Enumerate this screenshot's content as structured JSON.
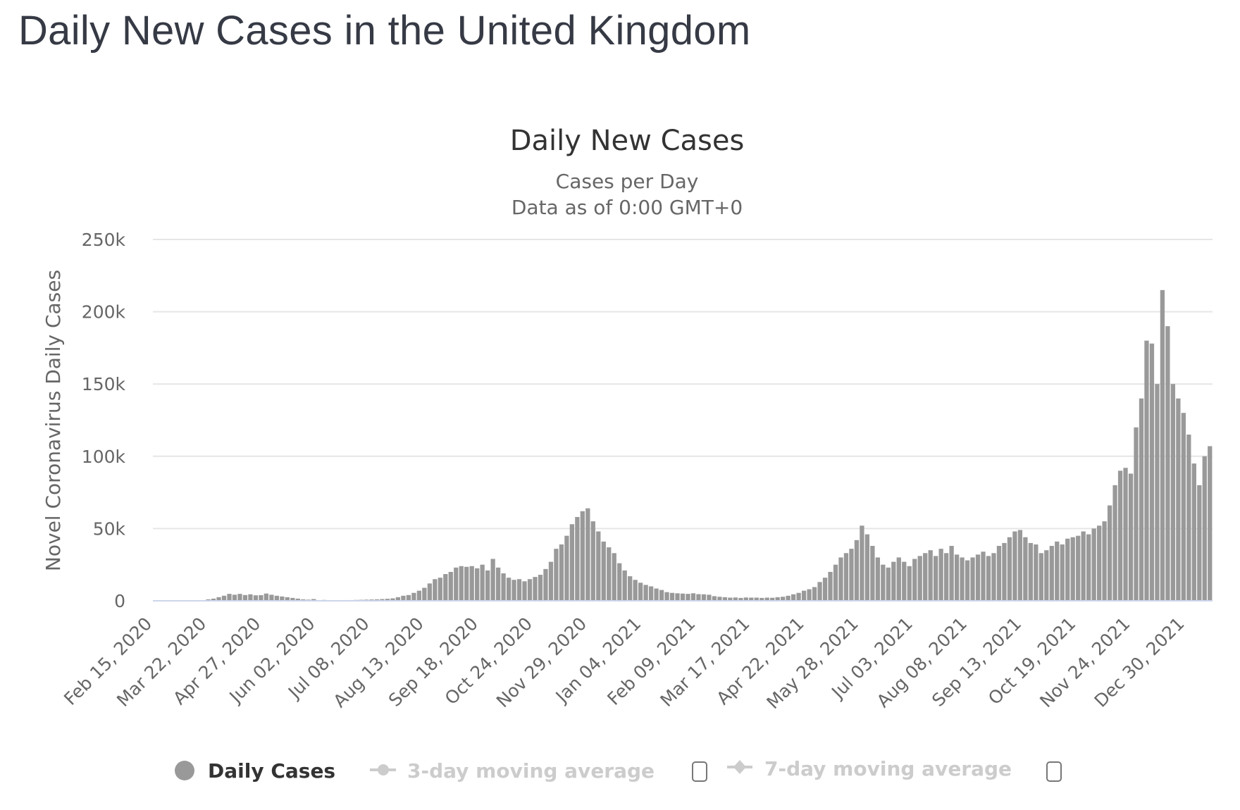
{
  "page": {
    "title": "Daily New Cases in the United Kingdom"
  },
  "chart_data": {
    "type": "bar",
    "title": "Daily New Cases",
    "subtitle": [
      "Cases per Day",
      "Data as of 0:00 GMT+0"
    ],
    "xlabel": "",
    "ylabel": "Novel Coronavirus Daily Cases",
    "ylim": [
      0,
      250000
    ],
    "y_ticks": [
      0,
      50000,
      100000,
      150000,
      200000,
      250000
    ],
    "y_tick_labels": [
      "0",
      "50k",
      "100k",
      "150k",
      "200k",
      "250k"
    ],
    "x_start": "Feb 15, 2020",
    "x_end": "Jan 17, 2022",
    "x_tick_interval_days": 36,
    "x_tick_labels": [
      "Feb 15, 2020",
      "Mar 22, 2020",
      "Apr 27, 2020",
      "Jun 02, 2020",
      "Jul 08, 2020",
      "Aug 13, 2020",
      "Sep 18, 2020",
      "Oct 24, 2020",
      "Nov 29, 2020",
      "Jan 04, 2021",
      "Feb 09, 2021",
      "Mar 17, 2021",
      "Apr 22, 2021",
      "May 28, 2021",
      "Jul 03, 2021",
      "Aug 08, 2021",
      "Sep 13, 2021",
      "Oct 19, 2021",
      "Nov 24, 2021",
      "Dec 30, 2021"
    ],
    "grid": true,
    "bar_color": "#999999",
    "sample_interval_days": 4,
    "series": [
      {
        "name": "Daily Cases",
        "values": [
          0,
          0,
          0,
          0,
          0,
          0,
          0,
          0,
          0,
          500,
          1000,
          1500,
          2500,
          3500,
          4800,
          4200,
          4800,
          4000,
          4500,
          3800,
          3900,
          5000,
          4200,
          3500,
          3000,
          2500,
          2000,
          1500,
          1000,
          800,
          1200,
          400,
          600,
          400,
          300,
          400,
          500,
          500,
          600,
          700,
          800,
          900,
          1000,
          1200,
          1400,
          1700,
          2500,
          3500,
          4000,
          5500,
          7000,
          9000,
          12000,
          15000,
          16000,
          18500,
          20000,
          23000,
          24000,
          23500,
          24000,
          22500,
          25000,
          21000,
          29000,
          23000,
          19000,
          16000,
          14500,
          15000,
          13500,
          15000,
          16500,
          18000,
          22000,
          27000,
          36000,
          39000,
          45000,
          53000,
          58000,
          62000,
          64000,
          55000,
          48000,
          41000,
          37000,
          33000,
          26000,
          21000,
          17000,
          14500,
          12500,
          11000,
          10000,
          8500,
          7500,
          6000,
          5500,
          5200,
          5000,
          4800,
          5200,
          4600,
          4500,
          4200,
          3200,
          2800,
          2500,
          2200,
          2300,
          2000,
          2300,
          2200,
          2200,
          2000,
          2200,
          2100,
          2500,
          2800,
          3500,
          4500,
          5500,
          7000,
          8000,
          9500,
          13000,
          16000,
          20000,
          25000,
          30000,
          33000,
          36000,
          42000,
          52000,
          46000,
          38000,
          30000,
          25000,
          23000,
          27000,
          30000,
          27000,
          24000,
          29000,
          31000,
          33000,
          35000,
          31000,
          36000,
          33000,
          38000,
          32000,
          30000,
          28000,
          30000,
          32000,
          34000,
          31000,
          33000,
          38000,
          40000,
          44000,
          48000,
          49000,
          44000,
          40000,
          39000,
          33000,
          35000,
          38000,
          41000,
          39000,
          43000,
          44000,
          45000,
          48000,
          46000,
          50000,
          52000,
          55000,
          66000,
          80000,
          90000,
          92000,
          88000,
          120000,
          140000,
          180000,
          178000,
          150000,
          215000,
          190000,
          150000,
          140000,
          130000,
          115000,
          95000,
          80000,
          100000,
          107000
        ]
      },
      {
        "name": "3-day moving average",
        "visible": false
      },
      {
        "name": "7-day moving average",
        "visible": false
      }
    ]
  },
  "legend": {
    "items": [
      {
        "label": "Daily Cases",
        "icon": "circle-marker",
        "active": true
      },
      {
        "label": "3-day moving average",
        "icon": "line-circle-marker",
        "active": false,
        "checkbox_checked": false
      },
      {
        "label": "7-day moving average",
        "icon": "line-diamond-marker",
        "active": false,
        "checkbox_checked": false
      }
    ]
  },
  "colors": {
    "bar": "#999999",
    "grid": "#e6e6e6",
    "baseline": "#ccd6eb",
    "legend_inactive": "#cccccc",
    "text": "#333333",
    "muted_text": "#666666"
  }
}
